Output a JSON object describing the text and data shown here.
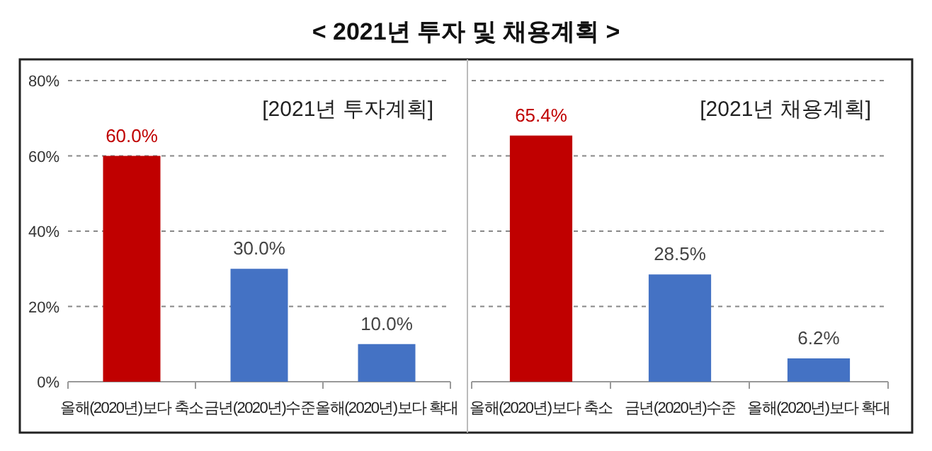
{
  "chart_data": [
    {
      "type": "bar",
      "title": "< 2021년 투자 및 채용계획 >",
      "subtitle": "[2021년 투자계획]",
      "categories": [
        "올해(2020년)보다 축소",
        "금년(2020년)수준",
        "올해(2020년)보다 확대"
      ],
      "values": [
        60.0,
        30.0,
        10.0
      ],
      "colors": [
        "#c00000",
        "#4472c4",
        "#4472c4"
      ],
      "value_labels": [
        "60.0%",
        "30.0%",
        "10.0%"
      ],
      "ylim": [
        0,
        80
      ],
      "yticks": [
        {
          "value": 0,
          "label": "0%"
        },
        {
          "value": 20,
          "label": "20%"
        },
        {
          "value": 40,
          "label": "40%"
        },
        {
          "value": 60,
          "label": "60%"
        },
        {
          "value": 80,
          "label": "80%"
        }
      ],
      "grid": "y"
    },
    {
      "type": "bar",
      "subtitle": "[2021년 채용계획]",
      "categories": [
        "올해(2020년)보다 축소",
        "금년(2020년)수준",
        "올해(2020년)보다 확대"
      ],
      "values": [
        65.4,
        28.5,
        6.2
      ],
      "colors": [
        "#c00000",
        "#4472c4",
        "#4472c4"
      ],
      "value_labels": [
        "65.4%",
        "28.5%",
        "6.2%"
      ],
      "ylim": [
        0,
        80
      ],
      "yticks": [
        {
          "value": 0,
          "label": null
        },
        {
          "value": 20,
          "label": null
        },
        {
          "value": 40,
          "label": null
        },
        {
          "value": 60,
          "label": null
        },
        {
          "value": 80,
          "label": null
        }
      ],
      "tick_labels": "x",
      "grid": "y"
    }
  ]
}
